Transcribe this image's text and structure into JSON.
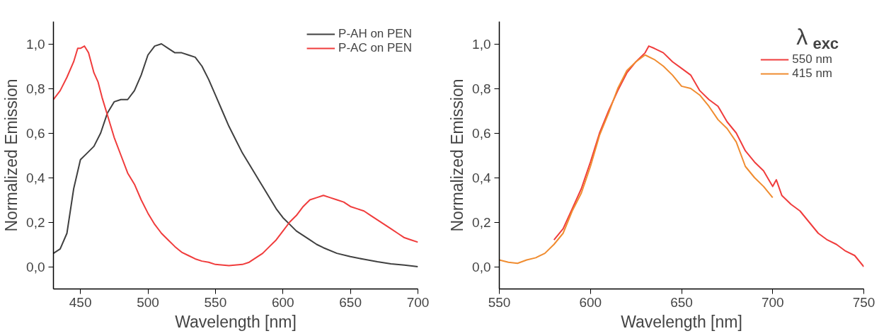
{
  "chart_data": [
    {
      "type": "line",
      "xlabel": "Wavelength [nm]",
      "ylabel": "Normalized Emission",
      "xlim": [
        430,
        700
      ],
      "ylim": [
        -0.1,
        1.1
      ],
      "xticks": [
        450,
        500,
        550,
        600,
        650,
        700
      ],
      "yticks": [
        {
          "value": 0,
          "label": "0,0"
        },
        {
          "value": 0.2,
          "label": "0,2"
        },
        {
          "value": 0.4,
          "label": "0,4"
        },
        {
          "value": 0.6,
          "label": "0,6"
        },
        {
          "value": 0.8,
          "label": "0,8"
        },
        {
          "value": 1.0,
          "label": "1,0"
        }
      ],
      "legend": "top right",
      "line_style": "solid",
      "series": [
        {
          "name": "P-AH on PEN",
          "color": "#404040",
          "x": [
            430,
            435,
            440,
            445,
            450,
            455,
            460,
            465,
            470,
            475,
            480,
            485,
            490,
            495,
            500,
            505,
            510,
            515,
            520,
            525,
            530,
            535,
            540,
            545,
            550,
            555,
            560,
            565,
            570,
            575,
            580,
            585,
            590,
            595,
            600,
            605,
            610,
            615,
            620,
            625,
            630,
            640,
            650,
            660,
            670,
            680,
            690,
            700
          ],
          "values": [
            0.06,
            0.08,
            0.15,
            0.35,
            0.48,
            0.51,
            0.54,
            0.6,
            0.69,
            0.74,
            0.75,
            0.75,
            0.79,
            0.86,
            0.95,
            0.99,
            1.0,
            0.98,
            0.96,
            0.96,
            0.95,
            0.94,
            0.9,
            0.84,
            0.77,
            0.7,
            0.63,
            0.57,
            0.51,
            0.46,
            0.41,
            0.36,
            0.31,
            0.26,
            0.22,
            0.19,
            0.16,
            0.14,
            0.12,
            0.1,
            0.085,
            0.06,
            0.045,
            0.033,
            0.022,
            0.013,
            0.007,
            0.0
          ]
        },
        {
          "name": "P-AC on PEN",
          "color": "#f03c3c",
          "x": [
            430,
            435,
            440,
            445,
            448,
            450,
            453,
            456,
            460,
            463,
            466,
            470,
            475,
            480,
            485,
            490,
            495,
            500,
            505,
            510,
            515,
            520,
            525,
            530,
            535,
            540,
            545,
            550,
            560,
            570,
            575,
            580,
            585,
            590,
            595,
            600,
            605,
            610,
            615,
            620,
            625,
            630,
            635,
            640,
            645,
            650,
            655,
            660,
            665,
            670,
            675,
            680,
            685,
            690,
            695,
            700
          ],
          "values": [
            0.75,
            0.79,
            0.85,
            0.92,
            0.98,
            0.98,
            0.99,
            0.96,
            0.87,
            0.83,
            0.76,
            0.68,
            0.58,
            0.5,
            0.42,
            0.37,
            0.3,
            0.24,
            0.19,
            0.15,
            0.12,
            0.09,
            0.065,
            0.05,
            0.035,
            0.025,
            0.02,
            0.01,
            0.005,
            0.01,
            0.02,
            0.04,
            0.06,
            0.09,
            0.12,
            0.16,
            0.2,
            0.23,
            0.27,
            0.3,
            0.31,
            0.32,
            0.31,
            0.3,
            0.29,
            0.27,
            0.26,
            0.25,
            0.23,
            0.21,
            0.19,
            0.17,
            0.15,
            0.13,
            0.12,
            0.11
          ]
        }
      ]
    },
    {
      "type": "line",
      "xlabel": "Wavelength [nm]",
      "ylabel": "Normalized Emission",
      "xlim": [
        550,
        750
      ],
      "ylim": [
        -0.1,
        1.1
      ],
      "xticks": [
        550,
        600,
        650,
        700,
        750
      ],
      "yticks": [
        {
          "value": 0,
          "label": "0,0"
        },
        {
          "value": 0.2,
          "label": "0,2"
        },
        {
          "value": 0.4,
          "label": "0,4"
        },
        {
          "value": 0.6,
          "label": "0,6"
        },
        {
          "value": 0.8,
          "label": "0,8"
        },
        {
          "value": 1.0,
          "label": "1,0"
        }
      ],
      "legend": "top right",
      "legend_title": "λ$_{exc}$",
      "line_style": "solid",
      "series": [
        {
          "name": "550 nm",
          "color": "#f03c3c",
          "x": [
            580,
            585,
            590,
            595,
            600,
            605,
            610,
            615,
            620,
            625,
            630,
            632,
            635,
            640,
            645,
            650,
            655,
            660,
            665,
            670,
            675,
            680,
            685,
            690,
            695,
            700,
            702,
            705,
            710,
            715,
            720,
            725,
            730,
            735,
            740,
            745,
            750
          ],
          "values": [
            0.12,
            0.17,
            0.26,
            0.35,
            0.47,
            0.6,
            0.7,
            0.79,
            0.87,
            0.92,
            0.96,
            0.99,
            0.98,
            0.96,
            0.92,
            0.89,
            0.86,
            0.79,
            0.75,
            0.72,
            0.65,
            0.6,
            0.52,
            0.47,
            0.43,
            0.36,
            0.39,
            0.32,
            0.28,
            0.25,
            0.2,
            0.15,
            0.12,
            0.1,
            0.07,
            0.05,
            0.0
          ]
        },
        {
          "name": "415 nm",
          "color": "#f08c30",
          "x": [
            550,
            555,
            560,
            565,
            570,
            575,
            580,
            585,
            590,
            595,
            600,
            605,
            610,
            615,
            620,
            625,
            630,
            635,
            640,
            645,
            650,
            655,
            660,
            665,
            670,
            675,
            680,
            685,
            690,
            695,
            700
          ],
          "values": [
            0.03,
            0.02,
            0.015,
            0.03,
            0.04,
            0.06,
            0.1,
            0.15,
            0.25,
            0.33,
            0.45,
            0.59,
            0.69,
            0.8,
            0.88,
            0.92,
            0.95,
            0.93,
            0.9,
            0.86,
            0.81,
            0.8,
            0.77,
            0.72,
            0.66,
            0.62,
            0.56,
            0.45,
            0.4,
            0.36,
            0.31
          ]
        }
      ]
    }
  ]
}
